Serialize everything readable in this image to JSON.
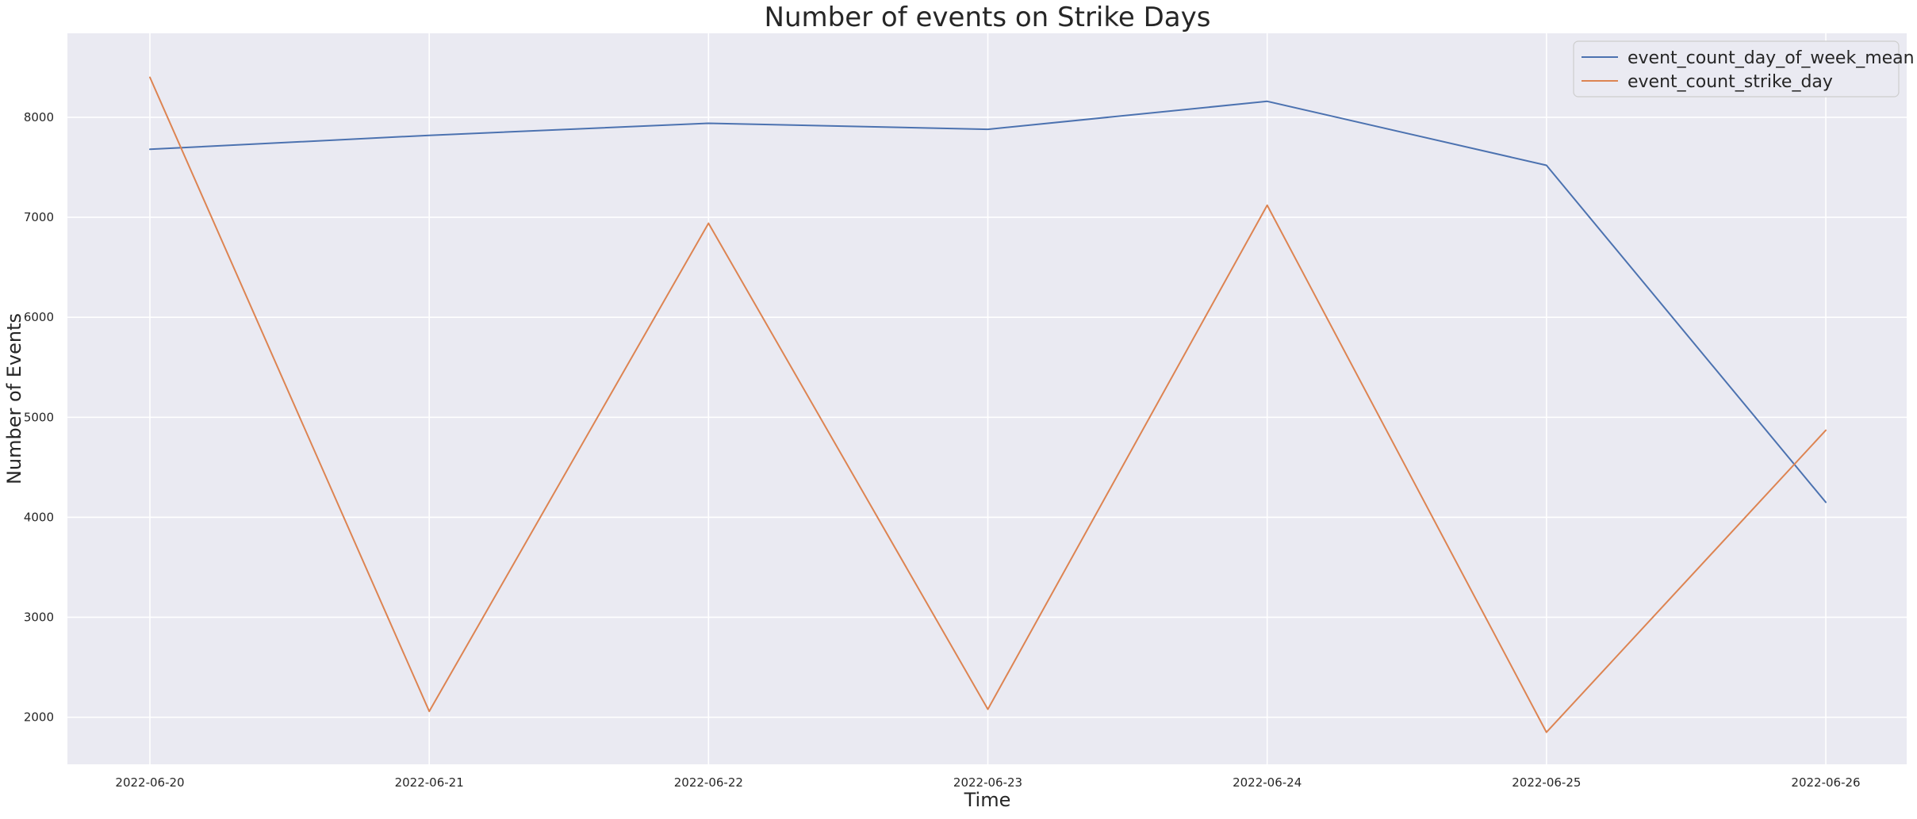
{
  "chart_data": {
    "type": "line",
    "title": "Number of events on Strike Days",
    "xlabel": "Time",
    "ylabel": "Number of Events",
    "x": [
      "2022-06-20",
      "2022-06-21",
      "2022-06-22",
      "2022-06-23",
      "2022-06-24",
      "2022-06-25",
      "2022-06-26"
    ],
    "series": [
      {
        "name": "event_count_day_of_week_mean",
        "color": "#4c72b0",
        "values": [
          7680,
          7820,
          7940,
          7880,
          8160,
          7520,
          4150
        ]
      },
      {
        "name": "event_count_strike_day",
        "color": "#dd8452",
        "values": [
          8400,
          2060,
          6940,
          2080,
          7120,
          1850,
          4870
        ]
      }
    ],
    "yticks": [
      2000,
      3000,
      4000,
      5000,
      6000,
      7000,
      8000
    ],
    "ylim": [
      1530,
      8840
    ],
    "grid": true,
    "legend_position": "top-right",
    "background_color": "#eaeaf2"
  }
}
